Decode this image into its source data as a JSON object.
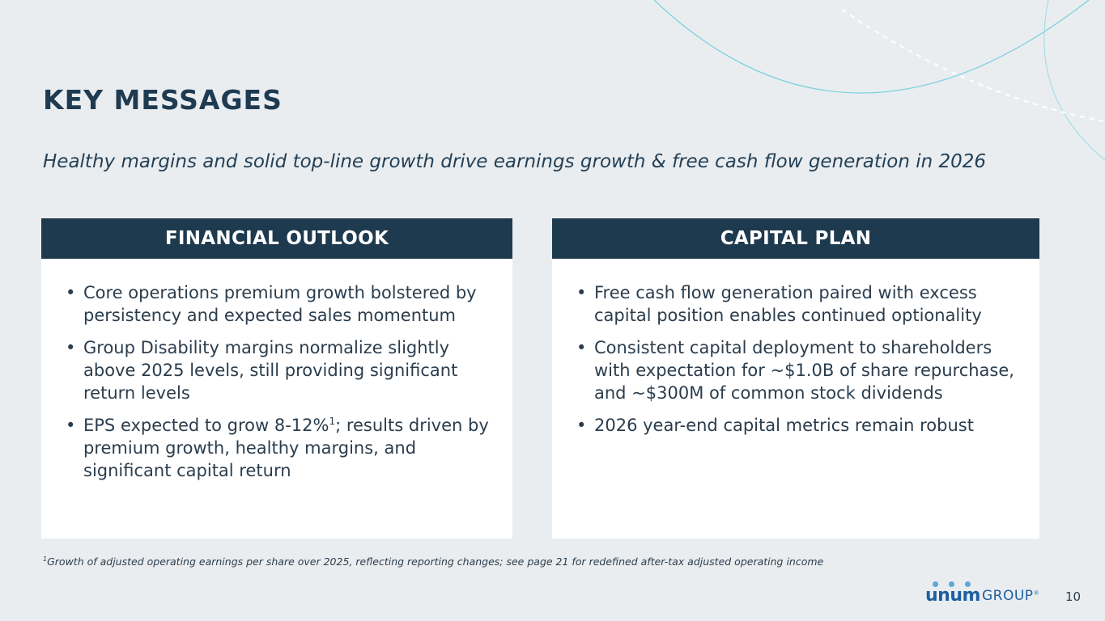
{
  "header": {
    "title": "KEY MESSAGES",
    "subtitle": "Healthy margins and solid top-line growth drive earnings growth & free cash flow generation in 2026"
  },
  "panels": [
    {
      "heading": "FINANCIAL OUTLOOK",
      "bullets": [
        {
          "text": "Core operations premium growth bolstered by persistency and expected sales momentum"
        },
        {
          "text": "Group Disability margins normalize slightly above 2025 levels, still providing significant return levels"
        },
        {
          "pre": "EPS expected to grow 8-12%",
          "sup": "1",
          "post": "; results driven by premium growth, healthy margins, and significant capital return"
        }
      ]
    },
    {
      "heading": "CAPITAL PLAN",
      "bullets": [
        {
          "text": "Free cash flow generation paired with excess capital position enables continued optionality"
        },
        {
          "text": "Consistent capital deployment to shareholders with expectation for ~$1.0B of share repurchase, and ~$300M of common stock dividends"
        },
        {
          "text": "2026 year-end capital metrics remain robust"
        }
      ]
    }
  ],
  "bullet_glyph": "•",
  "footnote": {
    "marker": "1",
    "text": "Growth of adjusted operating earnings per share over 2025, reflecting reporting changes; see page 21 for redefined after-tax adjusted operating income"
  },
  "logo": {
    "unum": "unum",
    "group": "GROUP",
    "reg": "®"
  },
  "page_number": "10",
  "colors": {
    "background": "#eaedf0",
    "header_bar": "#1e3a4f",
    "title": "#1f3b52",
    "decor_line": "#7fd3dc",
    "logo_blue": "#1e5fa0",
    "logo_dots": "#5aa9d6"
  }
}
